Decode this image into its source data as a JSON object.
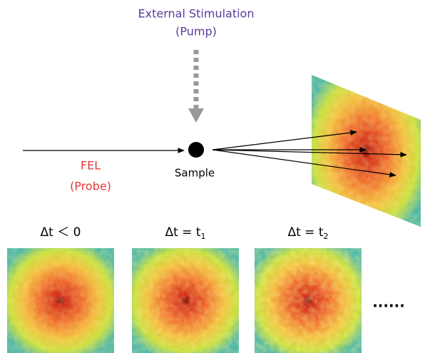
{
  "pump": {
    "title": "External Stimulation",
    "subtitle": "(Pump)"
  },
  "probe": {
    "title": "FEL",
    "subtitle": "(Probe)"
  },
  "sample": {
    "label": "Sample"
  },
  "frames": [
    {
      "main": "Δt ＜ 0",
      "sub": null
    },
    {
      "main": "Δt = t",
      "sub": "1"
    },
    {
      "main": "Δt =  t",
      "sub": "2"
    }
  ],
  "ellipsis": "......"
}
